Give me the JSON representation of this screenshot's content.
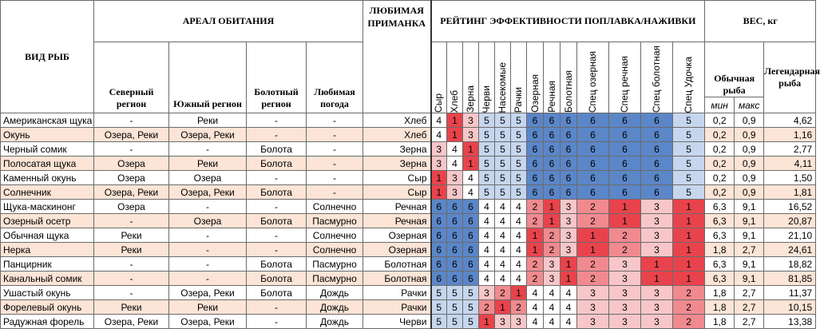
{
  "header": {
    "fish": "ВИД РЫБ",
    "habitat": "АРЕАЛ ОБИТАНИЯ",
    "bait": "ЛЮБИМАЯ ПРИМАНКА",
    "rating": "РЕЙТИНГ ЭФФЕКТИВНОСТИ ПОПЛАВКА/НАЖИВКИ",
    "weight": "ВЕС, кг",
    "north": "Северный регион",
    "south": "Южный регион",
    "swamp": "Болотный регион",
    "weather": "Любимая погода",
    "normal_fish": "Обычная рыба",
    "legendary_fish": "Легендарная рыба",
    "min": "мин",
    "max": "макс",
    "rating_cols": [
      "Сыр",
      "Хлеб",
      "Зерна",
      "Черви",
      "Насекомые",
      "Рачки",
      "Озерная",
      "Речная",
      "Болотная",
      "Спец озерная",
      "Спец речная",
      "Спец болотная",
      "Спец Удочка"
    ]
  },
  "colors": {
    "dark_red": "#e8434c",
    "red": "#f08a8f",
    "light_red": "#f7c6c8",
    "white": "#ffffff",
    "light_blue": "#c6d6ee",
    "mid_blue": "#8eacd8",
    "dark_blue": "#5b86c8",
    "row_tint": "#fce4d6"
  },
  "rows": [
    {
      "name": "Американская щука",
      "north": "-",
      "south": "Реки",
      "swamp": "-",
      "weather": "-",
      "bait": "Хлеб",
      "r": [
        "4",
        "1",
        "3",
        "5",
        "5",
        "5",
        "6",
        "6",
        "6",
        "6",
        "6",
        "6",
        "5"
      ],
      "min": "0,2",
      "max": "0,9",
      "legend": "4,62"
    },
    {
      "name": "Окунь",
      "north": "Озера, Реки",
      "south": "Озера, Реки",
      "swamp": "-",
      "weather": "-",
      "bait": "Хлеб",
      "r": [
        "4",
        "1",
        "3",
        "5",
        "5",
        "5",
        "6",
        "6",
        "6",
        "6",
        "6",
        "6",
        "5"
      ],
      "min": "0,2",
      "max": "0,9",
      "legend": "1,16"
    },
    {
      "name": "Черный сомик",
      "north": "-",
      "south": "-",
      "swamp": "Болота",
      "weather": "-",
      "bait": "Зерна",
      "r": [
        "3",
        "4",
        "1",
        "5",
        "5",
        "5",
        "6",
        "6",
        "6",
        "6",
        "6",
        "6",
        "5"
      ],
      "min": "0,2",
      "max": "0,9",
      "legend": "2,77"
    },
    {
      "name": "Полосатая щука",
      "north": "Озера",
      "south": "Реки",
      "swamp": "Болота",
      "weather": "-",
      "bait": "Зерна",
      "r": [
        "3",
        "4",
        "1",
        "5",
        "5",
        "5",
        "6",
        "6",
        "6",
        "6",
        "6",
        "6",
        "5"
      ],
      "min": "0,2",
      "max": "0,9",
      "legend": "4,11"
    },
    {
      "name": "Каменный окунь",
      "north": "Озера",
      "south": "Озера",
      "swamp": "-",
      "weather": "-",
      "bait": "Сыр",
      "r": [
        "1",
        "3",
        "4",
        "5",
        "5",
        "5",
        "6",
        "6",
        "6",
        "6",
        "6",
        "6",
        "5"
      ],
      "min": "0,2",
      "max": "0,9",
      "legend": "1,50"
    },
    {
      "name": "Солнечник",
      "north": "Озера, Реки",
      "south": "Озера, Реки",
      "swamp": "Болота",
      "weather": "-",
      "bait": "Сыр",
      "r": [
        "1",
        "3",
        "4",
        "5",
        "5",
        "5",
        "6",
        "6",
        "6",
        "6",
        "6",
        "6",
        "5"
      ],
      "min": "0,2",
      "max": "0,9",
      "legend": "1,81"
    },
    {
      "name": "Щука-маскинонг",
      "north": "Озера",
      "south": "-",
      "swamp": "-",
      "weather": "Солнечно",
      "bait": "Речная",
      "r": [
        "6",
        "6",
        "6",
        "4",
        "4",
        "4",
        "2",
        "1",
        "3",
        "2",
        "1",
        "3",
        "1"
      ],
      "min": "6,3",
      "max": "9,1",
      "legend": "16,52"
    },
    {
      "name": "Озерный осетр",
      "north": "-",
      "south": "Озера",
      "swamp": "Болота",
      "weather": "Пасмурно",
      "bait": "Речная",
      "r": [
        "6",
        "6",
        "6",
        "4",
        "4",
        "4",
        "2",
        "1",
        "3",
        "2",
        "1",
        "3",
        "1"
      ],
      "min": "6,3",
      "max": "9,1",
      "legend": "20,87"
    },
    {
      "name": "Обычная щука",
      "north": "Реки",
      "south": "-",
      "swamp": "-",
      "weather": "Солнечно",
      "bait": "Озерная",
      "r": [
        "6",
        "6",
        "6",
        "4",
        "4",
        "4",
        "1",
        "2",
        "3",
        "1",
        "2",
        "3",
        "1"
      ],
      "min": "6,3",
      "max": "9,1",
      "legend": "21,10"
    },
    {
      "name": "Нерка",
      "north": "Реки",
      "south": "-",
      "swamp": "-",
      "weather": "Солнечно",
      "bait": "Озерная",
      "r": [
        "6",
        "6",
        "6",
        "4",
        "4",
        "4",
        "1",
        "2",
        "3",
        "1",
        "2",
        "3",
        "1"
      ],
      "min": "1,8",
      "max": "2,7",
      "legend": "24,61"
    },
    {
      "name": "Панцирник",
      "north": "-",
      "south": "-",
      "swamp": "Болота",
      "weather": "Пасмурно",
      "bait": "Болотная",
      "r": [
        "6",
        "6",
        "6",
        "4",
        "4",
        "4",
        "2",
        "3",
        "1",
        "2",
        "3",
        "1",
        "1"
      ],
      "min": "6,3",
      "max": "9,1",
      "legend": "18,82"
    },
    {
      "name": "Канальный сомик",
      "north": "-",
      "south": "-",
      "swamp": "Болота",
      "weather": "Пасмурно",
      "bait": "Болотная",
      "r": [
        "6",
        "6",
        "6",
        "4",
        "4",
        "4",
        "2",
        "3",
        "1",
        "2",
        "3",
        "1",
        "1"
      ],
      "min": "6,3",
      "max": "9,1",
      "legend": "81,85"
    },
    {
      "name": "Ушастый окунь",
      "north": "-",
      "south": "Озера, Реки",
      "swamp": "Болота",
      "weather": "Дождь",
      "bait": "Рачки",
      "r": [
        "5",
        "5",
        "5",
        "3",
        "2",
        "1",
        "4",
        "4",
        "4",
        "3",
        "3",
        "3",
        "2"
      ],
      "min": "1,8",
      "max": "2,7",
      "legend": "11,37"
    },
    {
      "name": "Форелевый окунь",
      "north": "Реки",
      "south": "Реки",
      "swamp": "-",
      "weather": "Дождь",
      "bait": "Рачки",
      "r": [
        "5",
        "5",
        "5",
        "2",
        "1",
        "2",
        "4",
        "4",
        "4",
        "3",
        "3",
        "3",
        "2"
      ],
      "min": "1,8",
      "max": "2,7",
      "legend": "10,15"
    },
    {
      "name": "Радужная форель",
      "north": "Озера, Реки",
      "south": "Озера, Реки",
      "swamp": "-",
      "weather": "Дождь",
      "bait": "Черви",
      "r": [
        "5",
        "5",
        "5",
        "1",
        "3",
        "3",
        "4",
        "4",
        "4",
        "3",
        "3",
        "3",
        "2"
      ],
      "min": "1,8",
      "max": "2,7",
      "legend": "13,38"
    }
  ]
}
